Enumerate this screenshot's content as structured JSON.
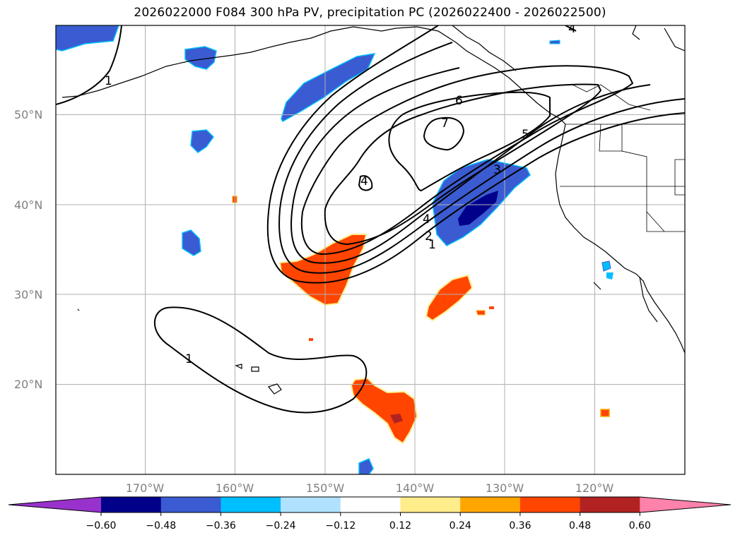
{
  "title": "2026022000 F084 300 hPa PV, precipitation PC (2026022400 - 2026022500)",
  "lat_labels": [
    "50°N",
    "40°N",
    "30°N",
    "20°N"
  ],
  "lon_labels": [
    "170°W",
    "160°W",
    "150°W",
    "140°W",
    "130°W",
    "120°W"
  ],
  "pv_contour_labels": [
    "1",
    "1",
    "2",
    "3",
    "4",
    "5",
    "6",
    "7",
    "1",
    "4",
    "4"
  ],
  "colorbar": {
    "colors": [
      "#9932cc",
      "#00008b",
      "#3a5bd1",
      "#00bfff",
      "#b0e2ff",
      "#ffffff",
      "#ffec8b",
      "#ffa500",
      "#ff4500",
      "#b22222",
      "#ff82ab"
    ],
    "tick_labels": [
      "−0.60",
      "−0.48",
      "−0.36",
      "−0.24",
      "−0.12",
      "0.12",
      "0.24",
      "0.36",
      "0.48",
      "0.60"
    ]
  },
  "chart_data": {
    "type": "map",
    "title": "2026022000 F084 300 hPa PV, precipitation PC (2026022400 - 2026022500)",
    "field_contour": "300 hPa PV",
    "field_shaded": "precipitation PC",
    "lon_range": [
      -180,
      -110
    ],
    "lat_range": [
      10,
      60
    ],
    "pv_contour_levels": [
      1,
      2,
      3,
      4,
      5,
      6,
      7
    ],
    "colorbar_levels": [
      -0.6,
      -0.48,
      -0.36,
      -0.24,
      -0.12,
      0.12,
      0.24,
      0.36,
      0.48,
      0.6
    ],
    "colorbar_extend": "both",
    "grid": true
  }
}
